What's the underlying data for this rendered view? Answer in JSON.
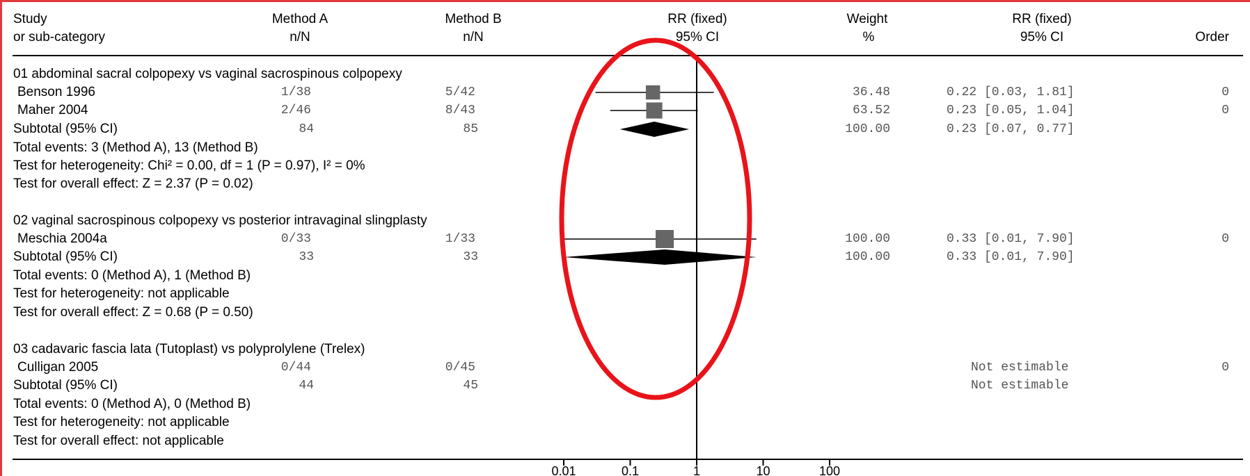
{
  "header": {
    "study": "Study",
    "subcategory": "or sub-category",
    "method_a": "Method A",
    "method_a_unit": "n/N",
    "method_b": "Method B",
    "method_b_unit": "n/N",
    "plot_title": "RR (fixed)",
    "plot_ci": "95% CI",
    "weight": "Weight",
    "weight_unit": "%",
    "rr_title": "RR (fixed)",
    "rr_ci": "95% CI",
    "order": "Order"
  },
  "groups": [
    {
      "title": "01 abdominal sacral colpopexy vs vaginal sacrospinous colpopexy",
      "studies": [
        {
          "name": "Benson 1996",
          "a": "1/38",
          "b": "5/42",
          "weight": "36.48",
          "rr_text": "0.22 [0.03, 1.81]",
          "order": "0"
        },
        {
          "name": "Maher 2004",
          "a": "2/46",
          "b": "8/43",
          "weight": "63.52",
          "rr_text": "0.23 [0.05, 1.04]",
          "order": "0"
        }
      ],
      "subtotal": {
        "label": "Subtotal (95% CI)",
        "a": "84",
        "b": "85",
        "weight": "100.00",
        "rr_text": "0.23 [0.07, 0.77]"
      },
      "notes": [
        "Total events: 3 (Method A), 13 (Method B)",
        "Test for heterogeneity: Chi² = 0.00, df = 1 (P = 0.97), I² = 0%",
        "Test for overall effect: Z = 2.37 (P = 0.02)"
      ]
    },
    {
      "title": "02 vaginal sacrospinous colpopexy vs posterior intravaginal slingplasty",
      "studies": [
        {
          "name": "Meschia 2004a",
          "a": "0/33",
          "b": "1/33",
          "weight": "100.00",
          "rr_text": "0.33 [0.01, 7.90]",
          "order": "0"
        }
      ],
      "subtotal": {
        "label": "Subtotal (95% CI)",
        "a": "33",
        "b": "33",
        "weight": "100.00",
        "rr_text": "0.33 [0.01, 7.90]"
      },
      "notes": [
        "Total events: 0 (Method A), 1 (Method B)",
        "Test for heterogeneity: not applicable",
        "Test for overall effect: Z = 0.68 (P = 0.50)"
      ]
    },
    {
      "title": "03 cadavaric fascia lata (Tutoplast) vs polyprolylene (Trelex)",
      "studies": [
        {
          "name": "Culligan 2005",
          "a": "0/44",
          "b": "0/45",
          "weight": "",
          "rr_text": "Not estimable",
          "order": "0"
        }
      ],
      "subtotal": {
        "label": "Subtotal (95% CI)",
        "a": "44",
        "b": "45",
        "weight": "",
        "rr_text": "Not estimable"
      },
      "notes": [
        "Total events: 0 (Method A), 0 (Method B)",
        "Test for heterogeneity: not applicable",
        "Test for overall effect: not applicable"
      ]
    }
  ],
  "chart_data": {
    "type": "scatter",
    "scale": "log",
    "xlim": [
      0.01,
      100
    ],
    "x_ticks": [
      "0.01",
      "0.1",
      "1",
      "10",
      "100"
    ],
    "null_line": 1,
    "studies": [
      {
        "name": "Benson 1996",
        "rr": 0.22,
        "lo": 0.03,
        "hi": 1.81,
        "weight": 36.48
      },
      {
        "name": "Maher 2004",
        "rr": 0.23,
        "lo": 0.05,
        "hi": 1.04,
        "weight": 63.52
      },
      {
        "name": "Meschia 2004a",
        "rr": 0.33,
        "lo": 0.01,
        "hi": 7.9,
        "weight": 100.0
      }
    ],
    "subtotals": [
      {
        "group": "01",
        "rr": 0.23,
        "lo": 0.07,
        "hi": 0.77
      },
      {
        "group": "02",
        "rr": 0.33,
        "lo": 0.01,
        "hi": 7.9
      }
    ],
    "square_color": "#666666",
    "diamond_color": "#000000",
    "highlight_color": "#e8141a"
  }
}
